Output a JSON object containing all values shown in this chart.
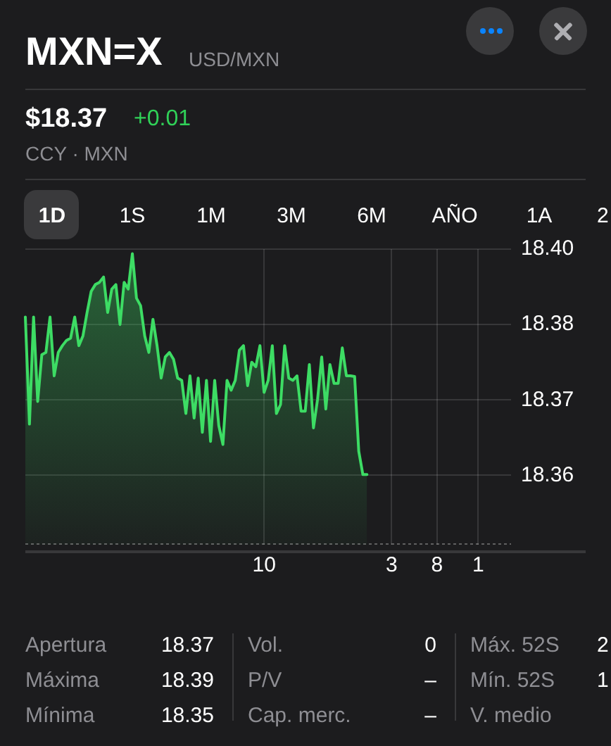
{
  "chart_data": {
    "type": "area",
    "title": "MXN=X",
    "subtitle": "USD/MXN",
    "annotations": [
      "$18.37",
      "+0.01",
      "CCY · MXN",
      "1D",
      "1S",
      "1M",
      "3M",
      "6M",
      "AÑO",
      "1A",
      "2",
      "Apertura",
      "18.37",
      "Máxima",
      "18.39",
      "Mínima",
      "18.35",
      "Vol.",
      "0",
      "P/V",
      "–",
      "Cap. merc.",
      "–",
      "Máx. 52S",
      "2",
      "Mín. 52S",
      "1",
      "V. medio"
    ],
    "categories": [
      null,
      null,
      null,
      null,
      null,
      null,
      null,
      null,
      null,
      null,
      null,
      null,
      null,
      null,
      null,
      null,
      null,
      null,
      null,
      null,
      null,
      null,
      null,
      null,
      null,
      null,
      null,
      null,
      null,
      null,
      null,
      null,
      null,
      null,
      null,
      null,
      null,
      null,
      null,
      null,
      null,
      null,
      null,
      null,
      null,
      null,
      null,
      null,
      null,
      null,
      null,
      null,
      null,
      null,
      null,
      null,
      null,
      null,
      "10",
      null,
      null,
      null,
      null,
      null,
      null,
      null,
      null,
      null,
      null,
      null,
      null,
      null,
      null,
      null,
      null,
      null,
      null,
      null,
      null,
      null,
      null,
      null,
      null,
      null,
      null,
      null,
      null,
      null,
      null,
      "3",
      null,
      null,
      null,
      null,
      null,
      null,
      null,
      null,
      null,
      null,
      "8",
      null,
      null,
      null,
      null,
      null,
      null,
      null,
      null,
      null,
      "1",
      null,
      null,
      null,
      null,
      null,
      null,
      null,
      null
    ],
    "values": [
      18.386,
      18.3718,
      18.386,
      18.3748,
      18.381,
      18.3813,
      18.386,
      18.3782,
      18.3813,
      18.3822,
      18.3829,
      18.3832,
      18.386,
      18.3822,
      18.3835,
      18.3866,
      18.3894,
      18.3903,
      18.3906,
      18.3913,
      18.3866,
      18.3897,
      18.3903,
      18.385,
      18.3906,
      18.3897,
      18.3944,
      18.3885,
      18.3875,
      18.3835,
      18.3813,
      18.3857,
      18.3822,
      18.3779,
      18.3807,
      18.3813,
      18.3804,
      18.3779,
      18.3776,
      18.3732,
      18.3782,
      18.3726,
      18.3779,
      18.3707,
      18.3776,
      18.3695,
      18.3776,
      18.3716,
      18.3691,
      18.3776,
      18.3763,
      18.3776,
      18.3816,
      18.3822,
      18.3769,
      18.38,
      18.3794,
      18.3822,
      18.376,
      18.3776,
      18.3822,
      18.3732,
      18.3744,
      18.3822,
      18.3779,
      18.3776,
      18.3782,
      18.3735,
      18.3735,
      18.3797,
      18.3713,
      18.3751,
      18.3807,
      18.3738,
      18.3797,
      18.3772,
      18.3772,
      18.3819,
      18.3782,
      18.3782,
      18.3781,
      18.3682,
      18.3651,
      18.3651,
      null,
      null,
      null,
      null,
      null,
      null,
      null,
      null,
      null,
      null,
      null,
      null,
      null,
      null,
      null,
      null,
      null,
      null,
      null,
      null,
      null,
      null,
      null,
      null,
      null,
      null,
      null,
      null,
      null,
      null,
      null,
      null,
      null,
      null,
      null
    ],
    "color": "#3ddc64",
    "ylim": [
      18.3558,
      18.395
    ],
    "yticks": [
      {
        "value": 18.395,
        "label": "18.40"
      },
      {
        "value": 18.385,
        "label": "18.38"
      },
      {
        "value": 18.375,
        "label": "18.37"
      },
      {
        "value": 18.365,
        "label": "18.36"
      }
    ],
    "grid": true,
    "marker": "none"
  }
}
